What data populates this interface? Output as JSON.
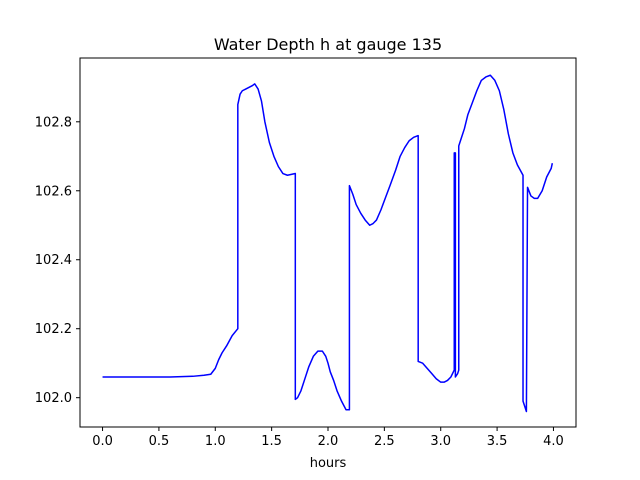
{
  "chart_data": {
    "type": "line",
    "title": "Water Depth h at gauge 135",
    "xlabel": "hours",
    "ylabel": "",
    "xlim": [
      -0.2,
      4.2
    ],
    "ylim": [
      101.915,
      102.985
    ],
    "xticks": [
      0.0,
      0.5,
      1.0,
      1.5,
      2.0,
      2.5,
      3.0,
      3.5,
      4.0
    ],
    "xtick_labels": [
      "0.0",
      "0.5",
      "1.0",
      "1.5",
      "2.0",
      "2.5",
      "3.0",
      "3.5",
      "4.0"
    ],
    "yticks": [
      102.0,
      102.2,
      102.4,
      102.6,
      102.8
    ],
    "ytick_labels": [
      "102.0",
      "102.2",
      "102.4",
      "102.6",
      "102.8"
    ],
    "grid": false,
    "series": [
      {
        "color": "#0000ff",
        "x": [
          0.0,
          0.3,
          0.6,
          0.8,
          0.9,
          0.96,
          1.0,
          1.03,
          1.06,
          1.1,
          1.15,
          1.2,
          1.2,
          1.22,
          1.24,
          1.27,
          1.3,
          1.33,
          1.35,
          1.38,
          1.41,
          1.44,
          1.48,
          1.52,
          1.56,
          1.6,
          1.64,
          1.68,
          1.71,
          1.71,
          1.73,
          1.76,
          1.79,
          1.83,
          1.87,
          1.91,
          1.95,
          1.98,
          2.0,
          2.02,
          2.05,
          2.08,
          2.12,
          2.16,
          2.19,
          2.19,
          2.22,
          2.25,
          2.29,
          2.33,
          2.37,
          2.4,
          2.43,
          2.47,
          2.51,
          2.55,
          2.6,
          2.64,
          2.68,
          2.72,
          2.76,
          2.8,
          2.8,
          2.84,
          2.88,
          2.92,
          2.96,
          3.0,
          3.03,
          3.06,
          3.09,
          3.12,
          3.12,
          3.13,
          3.13,
          3.15,
          3.16,
          3.16,
          3.18,
          3.21,
          3.24,
          3.28,
          3.32,
          3.36,
          3.4,
          3.44,
          3.48,
          3.52,
          3.56,
          3.6,
          3.64,
          3.68,
          3.73,
          3.73,
          3.75,
          3.76,
          3.77,
          3.8,
          3.83,
          3.86,
          3.9,
          3.94,
          3.98,
          3.99
        ],
        "y": [
          102.06,
          102.06,
          102.06,
          102.062,
          102.065,
          102.068,
          102.085,
          102.11,
          102.13,
          102.15,
          102.18,
          102.2,
          102.85,
          102.88,
          102.89,
          102.895,
          102.9,
          102.905,
          102.91,
          102.895,
          102.86,
          102.8,
          102.74,
          102.7,
          102.67,
          102.65,
          102.645,
          102.648,
          102.65,
          101.995,
          102.0,
          102.02,
          102.05,
          102.09,
          102.12,
          102.135,
          102.135,
          102.12,
          102.1,
          102.075,
          102.05,
          102.02,
          101.99,
          101.965,
          101.965,
          102.615,
          102.59,
          102.56,
          102.535,
          102.515,
          102.5,
          102.505,
          102.515,
          102.545,
          102.58,
          102.615,
          102.66,
          102.7,
          102.725,
          102.745,
          102.755,
          102.76,
          102.105,
          102.1,
          102.085,
          102.07,
          102.055,
          102.045,
          102.045,
          102.05,
          102.06,
          102.08,
          102.71,
          102.71,
          102.06,
          102.07,
          102.08,
          102.73,
          102.75,
          102.78,
          102.82,
          102.855,
          102.89,
          102.92,
          102.93,
          102.935,
          102.92,
          102.89,
          102.835,
          102.765,
          102.71,
          102.675,
          102.645,
          101.99,
          101.97,
          101.96,
          102.61,
          102.585,
          102.578,
          102.578,
          102.6,
          102.64,
          102.665,
          102.68
        ]
      }
    ]
  }
}
